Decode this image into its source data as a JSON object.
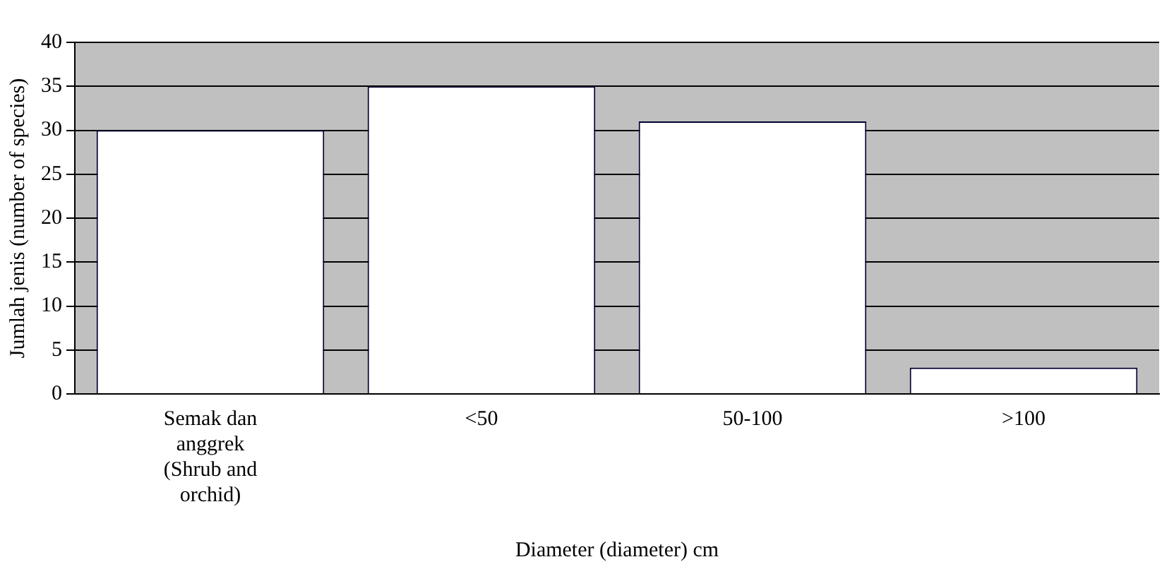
{
  "chart_data": {
    "type": "bar",
    "xlabel": "Diameter (diameter) cm",
    "ylabel": "Jumlah jenis (number of species)",
    "categories": [
      "Semak dan anggrek (Shrub and orchid)",
      "<50",
      "50-100",
      ">100"
    ],
    "values": [
      30,
      35,
      31,
      3
    ],
    "colors": [
      "#ffffff",
      "#ffffff",
      "#ffffff",
      "#ffffff"
    ],
    "ylim": [
      0,
      40
    ],
    "yticks": [
      0,
      5,
      10,
      15,
      20,
      25,
      30,
      35,
      40
    ],
    "grid": "y",
    "legend": false
  }
}
